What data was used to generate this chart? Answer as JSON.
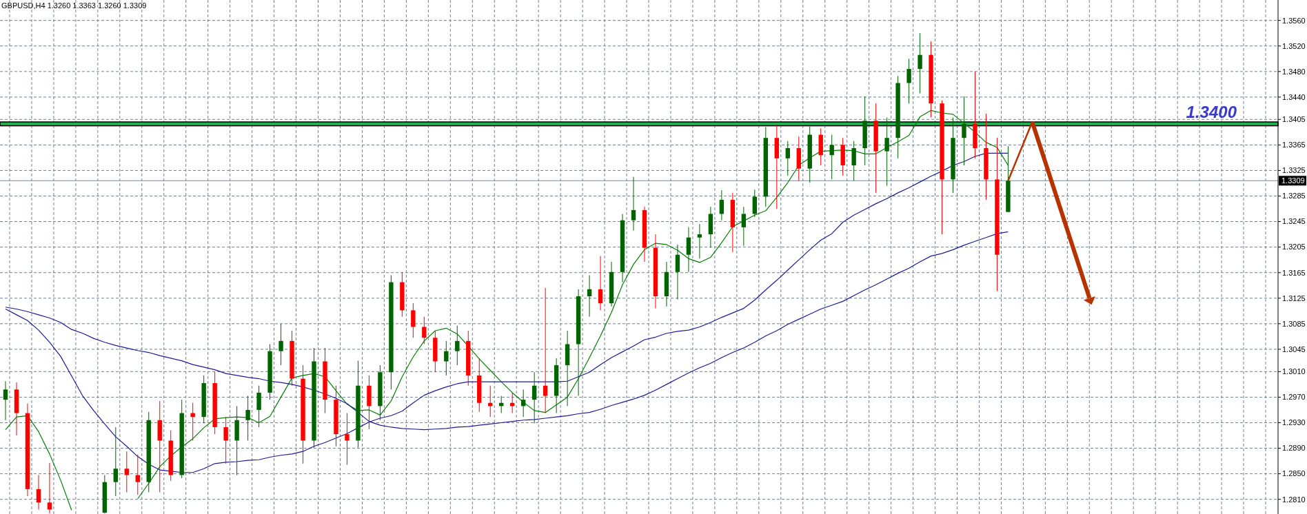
{
  "chart_data": {
    "type": "candlestick",
    "title": "GBPUSD,H4  1.3260 1.3363 1.3260 1.3309",
    "categories": [
      null,
      null,
      null,
      null,
      null,
      null,
      null,
      null,
      null,
      null,
      null,
      null,
      null,
      null,
      null,
      null,
      null,
      null,
      null,
      null,
      null,
      null,
      null,
      null,
      null,
      null,
      null,
      null,
      null,
      null,
      null,
      null,
      null,
      null,
      null,
      null,
      null,
      null,
      null,
      null,
      null,
      null,
      null,
      null,
      null,
      null,
      null,
      null,
      null,
      null,
      null,
      null,
      null,
      null,
      null,
      null,
      null,
      null,
      null,
      null,
      null,
      null,
      null,
      null,
      null,
      null,
      null,
      null,
      null,
      null,
      null,
      null,
      null,
      null,
      null,
      null,
      null,
      null,
      null,
      null,
      null,
      null,
      null,
      null,
      null,
      null,
      null,
      null,
      null,
      null,
      null,
      null,
      null,
      null,
      null,
      null,
      null,
      null,
      null,
      null,
      null,
      null,
      null,
      null,
      null,
      null,
      null,
      null,
      null,
      null,
      null,
      null,
      null,
      null,
      null,
      null
    ],
    "ohlc": [
      [
        1.2966,
        1.2995,
        1.2934,
        1.2982
      ],
      [
        1.2982,
        1.2993,
        1.291,
        1.2945
      ],
      [
        1.2945,
        1.296,
        1.2815,
        1.2826
      ],
      [
        1.2826,
        1.2848,
        1.2794,
        1.2805
      ],
      [
        1.2805,
        1.2867,
        1.2788,
        1.2794
      ],
      null,
      null,
      null,
      null,
      [
        1.2789,
        1.2848,
        1.2788,
        1.2837
      ],
      [
        1.2837,
        1.2923,
        1.2815,
        1.2858
      ],
      [
        1.2858,
        1.2885,
        1.2821,
        1.2848
      ],
      [
        1.2848,
        1.288,
        1.2817,
        1.2837
      ],
      [
        1.2837,
        1.2947,
        1.2821,
        1.2934
      ],
      [
        1.2934,
        1.2964,
        1.2821,
        1.2902
      ],
      [
        1.2902,
        1.2918,
        1.2839,
        1.2848
      ],
      [
        1.2848,
        1.2966,
        1.2843,
        1.2945
      ],
      [
        1.2945,
        1.2961,
        1.2902,
        1.2939
      ],
      [
        1.2939,
        1.3004,
        1.2929,
        1.2992
      ],
      [
        1.2992,
        1.301,
        1.2912,
        1.2923
      ],
      [
        1.2923,
        1.2939,
        1.2866,
        1.2902
      ],
      [
        1.2902,
        1.2956,
        1.2848,
        1.2934
      ],
      [
        1.2934,
        1.2972,
        1.2902,
        1.295
      ],
      [
        1.295,
        1.2988,
        1.2923,
        1.2977
      ],
      [
        1.2977,
        1.3053,
        1.2966,
        1.3042
      ],
      [
        1.3042,
        1.3085,
        1.302,
        1.3058
      ],
      [
        1.3058,
        1.3074,
        1.2988,
        1.2999
      ],
      [
        1.2999,
        1.302,
        1.2866,
        1.2902
      ],
      [
        1.2902,
        1.3047,
        1.2891,
        1.3026
      ],
      [
        1.3026,
        1.3047,
        1.2945,
        1.2966
      ],
      [
        1.2966,
        1.2988,
        1.2893,
        1.2912
      ],
      [
        1.2912,
        1.2945,
        1.2864,
        1.2902
      ],
      [
        1.2902,
        1.3027,
        1.2891,
        1.2988
      ],
      [
        1.2988,
        1.3004,
        1.292,
        1.2956
      ],
      [
        1.2956,
        1.302,
        1.2934,
        1.3009
      ],
      [
        1.3009,
        1.3161,
        1.2982,
        1.315
      ],
      [
        1.315,
        1.3166,
        1.3096,
        1.3106
      ],
      [
        1.3106,
        1.3117,
        1.3063,
        1.308
      ],
      [
        1.308,
        1.3096,
        1.3053,
        1.3063
      ],
      [
        1.3063,
        1.3074,
        1.3009,
        1.3026
      ],
      [
        1.3026,
        1.3058,
        1.3004,
        1.3042
      ],
      [
        1.3042,
        1.3082,
        1.302,
        1.3058
      ],
      [
        1.3058,
        1.3074,
        1.2988,
        1.3004
      ],
      [
        1.3004,
        1.3031,
        1.2947,
        1.2961
      ],
      [
        1.2961,
        1.2988,
        1.2939,
        1.2956
      ],
      [
        1.2956,
        1.2972,
        1.2945,
        1.2961
      ],
      [
        1.2961,
        1.2977,
        1.2945,
        1.2956
      ],
      [
        1.2956,
        1.2982,
        1.2939,
        1.2966
      ],
      [
        1.2966,
        1.3009,
        1.2929,
        1.2988
      ],
      [
        1.2988,
        1.3141,
        1.2945,
        1.2972
      ],
      [
        1.2972,
        1.3031,
        1.2945,
        1.302
      ],
      [
        1.302,
        1.3074,
        1.2956,
        1.3053
      ],
      [
        1.3053,
        1.3139,
        1.2972,
        1.3128
      ],
      [
        1.3128,
        1.3161,
        1.3096,
        1.3139
      ],
      [
        1.3139,
        1.3191,
        1.3106,
        1.3117
      ],
      [
        1.3117,
        1.3182,
        1.3112,
        1.3166
      ],
      [
        1.3166,
        1.3257,
        1.315,
        1.3247
      ],
      [
        1.3247,
        1.3315,
        1.3231,
        1.3263
      ],
      [
        1.3263,
        1.3268,
        1.3182,
        1.3204
      ],
      [
        1.3204,
        1.3225,
        1.3109,
        1.3128
      ],
      [
        1.3128,
        1.3182,
        1.3112,
        1.3166
      ],
      [
        1.3166,
        1.3209,
        1.3123,
        1.3193
      ],
      [
        1.3193,
        1.3236,
        1.3166,
        1.322
      ],
      [
        1.322,
        1.3241,
        1.3187,
        1.3225
      ],
      [
        1.3225,
        1.3268,
        1.3204,
        1.3257
      ],
      [
        1.3257,
        1.3294,
        1.3247,
        1.3279
      ],
      [
        1.3279,
        1.329,
        1.3197,
        1.3236
      ],
      [
        1.3236,
        1.3268,
        1.3207,
        1.3257
      ],
      [
        1.3257,
        1.3295,
        1.3252,
        1.3284
      ],
      [
        1.3284,
        1.3393,
        1.3268,
        1.3376
      ],
      [
        1.3376,
        1.3396,
        1.3265,
        1.3344
      ],
      [
        1.3344,
        1.3371,
        1.3317,
        1.336
      ],
      [
        1.336,
        1.3378,
        1.3309,
        1.3328
      ],
      [
        1.3328,
        1.3394,
        1.3306,
        1.3381
      ],
      [
        1.3381,
        1.3391,
        1.3333,
        1.3349
      ],
      [
        1.3349,
        1.3381,
        1.3311,
        1.3365
      ],
      [
        1.3365,
        1.3376,
        1.3317,
        1.3333
      ],
      [
        1.3333,
        1.3371,
        1.3309,
        1.336
      ],
      [
        1.336,
        1.3441,
        1.3333,
        1.3403
      ],
      [
        1.3403,
        1.343,
        1.329,
        1.3355
      ],
      [
        1.3355,
        1.3408,
        1.3301,
        1.3376
      ],
      [
        1.3376,
        1.3473,
        1.3344,
        1.3462
      ],
      [
        1.3462,
        1.35,
        1.343,
        1.3484
      ],
      [
        1.3484,
        1.354,
        1.3446,
        1.3506
      ],
      [
        1.3506,
        1.3527,
        1.3408,
        1.343
      ],
      [
        1.343,
        1.3435,
        1.3225,
        1.3311
      ],
      [
        1.3311,
        1.3408,
        1.329,
        1.3376
      ],
      [
        1.3376,
        1.3441,
        1.3333,
        1.3398
      ],
      [
        1.3398,
        1.348,
        1.3344,
        1.336
      ],
      [
        1.336,
        1.3414,
        1.3279,
        1.3311
      ],
      [
        1.3311,
        1.3376,
        1.3136,
        1.3193
      ],
      [
        1.326,
        1.3363,
        1.326,
        1.3309
      ],
      null,
      null,
      null,
      null,
      null,
      null,
      null,
      null,
      null,
      null,
      null,
      null,
      null,
      null,
      null,
      null,
      null,
      null,
      null,
      null,
      null,
      null,
      null,
      null
    ],
    "colors": [
      "#006400",
      "#ff0000",
      "#ff0000",
      "#ff0000",
      "#ff0000",
      null,
      null,
      null,
      null,
      "#006400",
      "#006400",
      "#ff0000",
      "#ff0000",
      "#006400",
      "#ff0000",
      "#ff0000",
      "#006400",
      "#ff0000",
      "#006400",
      "#ff0000",
      "#ff0000",
      "#006400",
      "#006400",
      "#006400",
      "#006400",
      "#006400",
      "#ff0000",
      "#ff0000",
      "#006400",
      "#ff0000",
      "#ff0000",
      "#ff0000",
      "#006400",
      "#ff0000",
      "#006400",
      "#006400",
      "#ff0000",
      "#ff0000",
      "#ff0000",
      "#ff0000",
      "#006400",
      "#006400",
      "#ff0000",
      "#ff0000",
      "#ff0000",
      "#006400",
      "#ff0000",
      "#006400",
      "#006400",
      "#ff0000",
      "#006400",
      "#006400",
      "#006400",
      "#006400",
      "#ff0000",
      "#006400",
      "#006400",
      "#006400",
      "#ff0000",
      "#ff0000",
      "#006400",
      "#006400",
      "#006400",
      "#006400",
      "#006400",
      "#006400",
      "#ff0000",
      "#006400",
      "#006400",
      "#006400",
      "#ff0000",
      "#006400",
      "#ff0000",
      "#006400",
      "#ff0000",
      "#006400",
      "#ff0000",
      "#006400",
      "#006400",
      "#ff0000",
      "#006400",
      "#006400",
      "#006400",
      "#006400",
      "#ff0000",
      "#ff0000",
      "#006400",
      "#006400",
      "#ff0000",
      "#ff0000",
      "#ff0000",
      "#006400",
      null,
      null,
      null,
      null,
      null,
      null,
      null,
      null,
      null,
      null,
      null,
      null,
      null,
      null,
      null,
      null,
      null,
      null,
      null,
      null,
      null,
      null,
      null,
      null
    ],
    "series": [
      {
        "type": "line",
        "color": "#008000",
        "values": [
          1.2919,
          1.2939,
          1.2941,
          1.2916,
          1.2881,
          1.284,
          1.2793,
          null,
          null,
          null,
          null,
          null,
          1.2811,
          1.2835,
          1.2861,
          1.2878,
          1.2892,
          1.2905,
          1.2922,
          1.2936,
          1.2938,
          1.2939,
          1.2938,
          1.293,
          1.294,
          1.297,
          1.3,
          1.3004,
          1.3007,
          1.3002,
          1.298,
          1.2959,
          1.2949,
          1.295,
          1.2942,
          1.2964,
          1.3002,
          1.3033,
          1.3058,
          1.3074,
          1.3078,
          1.3069,
          1.305,
          1.303,
          1.3012,
          1.2994,
          1.2977,
          1.2962,
          1.2949,
          1.2946,
          1.2958,
          1.297,
          1.2999,
          1.3032,
          1.3066,
          1.3103,
          1.3146,
          1.3178,
          1.3201,
          1.3211,
          1.3209,
          1.32,
          1.3187,
          1.3181,
          1.3189,
          1.3212,
          1.3237,
          1.3246,
          1.3255,
          1.3262,
          1.3283,
          1.3306,
          1.3333,
          1.3345,
          1.3355,
          1.3356,
          1.3357,
          1.3356,
          1.3351,
          1.3351,
          1.3361,
          1.337,
          1.338,
          1.3409,
          1.3419,
          1.3415,
          1.3413,
          1.3399,
          1.3385,
          1.3369,
          1.3361,
          1.3333,
          null,
          null,
          null,
          null,
          null,
          null,
          null,
          null,
          null,
          null,
          null,
          null,
          null,
          null,
          null,
          null,
          null,
          null,
          null,
          null,
          null,
          null,
          null,
          null
        ]
      },
      {
        "type": "line",
        "color": "#1a1a9a",
        "values": [
          1.3108,
          1.3099,
          1.309,
          1.3075,
          1.3056,
          1.3034,
          1.3003,
          1.2972,
          1.2949,
          1.2928,
          1.2908,
          1.2893,
          1.2877,
          1.2865,
          1.2856,
          1.2854,
          1.2852,
          1.2852,
          1.2858,
          1.2866,
          1.2868,
          1.2869,
          1.2871,
          1.2872,
          1.2876,
          1.2879,
          1.2881,
          1.2885,
          1.2893,
          1.2899,
          1.2906,
          1.2913,
          1.2922,
          1.2931,
          1.2937,
          1.2941,
          1.2948,
          1.2961,
          1.2973,
          1.298,
          1.2986,
          1.2991,
          1.2994,
          1.2994,
          1.2994,
          1.2994,
          1.2994,
          1.2994,
          1.2994,
          1.2994,
          1.2994,
          1.2995,
          1.3002,
          1.3009,
          1.3021,
          1.3032,
          1.3041,
          1.305,
          1.306,
          1.3064,
          1.307,
          1.3073,
          1.3075,
          1.308,
          1.3087,
          1.3095,
          1.3102,
          1.3109,
          1.3122,
          1.3138,
          1.3153,
          1.3169,
          1.3185,
          1.3201,
          1.3216,
          1.3226,
          1.3244,
          1.3255,
          1.3264,
          1.3273,
          1.3281,
          1.329,
          1.3298,
          1.3307,
          1.3316,
          1.3324,
          1.3333,
          1.3339,
          1.3347,
          1.3352,
          1.3352,
          1.3352,
          null,
          null,
          null,
          null,
          null,
          null,
          null,
          null,
          null,
          null,
          null,
          null,
          null,
          null,
          null,
          null,
          null,
          null,
          null,
          null,
          null,
          null,
          null,
          null
        ]
      },
      {
        "type": "line",
        "color": "#1a1a9a",
        "values": [
          1.3111,
          1.3108,
          1.3104,
          1.3099,
          1.3094,
          1.3087,
          1.3076,
          1.307,
          1.3062,
          1.3056,
          1.3051,
          1.3047,
          1.3043,
          1.304,
          1.3035,
          1.3031,
          1.3027,
          1.3021,
          1.3017,
          1.3013,
          1.3007,
          1.3004,
          1.3001,
          1.2999,
          1.2995,
          1.2993,
          1.299,
          1.2986,
          1.2981,
          1.2975,
          1.2968,
          1.296,
          1.2946,
          1.2932,
          1.2926,
          1.2923,
          1.2921,
          1.292,
          1.2919,
          1.292,
          1.2921,
          1.2923,
          1.2924,
          1.2926,
          1.2928,
          1.293,
          1.2932,
          1.2934,
          1.2935,
          1.2937,
          1.2939,
          1.2941,
          1.2944,
          1.2946,
          1.2951,
          1.2957,
          1.2962,
          1.2967,
          1.2973,
          1.2981,
          1.299,
          1.2999,
          1.3008,
          1.3016,
          1.3023,
          1.3032,
          1.304,
          1.3047,
          1.3056,
          1.3066,
          1.3074,
          1.3084,
          1.3092,
          1.31,
          1.3108,
          1.3114,
          1.312,
          1.3129,
          1.3138,
          1.3146,
          1.3155,
          1.3164,
          1.3172,
          1.3182,
          1.3191,
          1.3195,
          1.3201,
          1.3208,
          1.3214,
          1.322,
          1.3226,
          1.3229,
          null,
          null,
          null,
          null,
          null,
          null,
          null,
          null,
          null,
          null,
          null,
          null,
          null,
          null,
          null,
          null,
          null,
          null,
          null,
          null,
          null,
          null,
          null,
          null
        ]
      }
    ],
    "ylim": [
      1.2787,
      1.3592
    ],
    "yticks": [
      {
        "value": 1.356,
        "label": "1.3560"
      },
      {
        "value": 1.352,
        "label": "1.3520"
      },
      {
        "value": 1.348,
        "label": "1.3480"
      },
      {
        "value": 1.344,
        "label": "1.3440"
      },
      {
        "value": 1.3405,
        "label": "1.3405"
      },
      {
        "value": 1.3365,
        "label": "1.3365"
      },
      {
        "value": 1.3325,
        "label": "1.3325"
      },
      {
        "value": 1.3285,
        "label": "1.3285"
      },
      {
        "value": 1.3245,
        "label": "1.3245"
      },
      {
        "value": 1.3205,
        "label": "1.3205"
      },
      {
        "value": 1.3165,
        "label": "1.3165"
      },
      {
        "value": 1.3125,
        "label": "1.3125"
      },
      {
        "value": 1.3085,
        "label": "1.3085"
      },
      {
        "value": 1.3045,
        "label": "1.3045"
      },
      {
        "value": 1.301,
        "label": "1.3010"
      },
      {
        "value": 1.297,
        "label": "1.2970"
      },
      {
        "value": 1.293,
        "label": "1.2930"
      },
      {
        "value": 1.289,
        "label": "1.2890"
      },
      {
        "value": 1.285,
        "label": "1.2850"
      },
      {
        "value": 1.281,
        "label": "1.2810"
      }
    ],
    "grid": true,
    "tick_labels": "y",
    "bands": [
      {
        "axis": "y",
        "from": 1.3395,
        "to": 1.3401,
        "label": "1.3400",
        "color": "#22b14c"
      }
    ],
    "ref_lines": [
      {
        "axis": "y",
        "value": 1.3309,
        "label": "1.3309",
        "color": "#778899"
      }
    ]
  }
}
